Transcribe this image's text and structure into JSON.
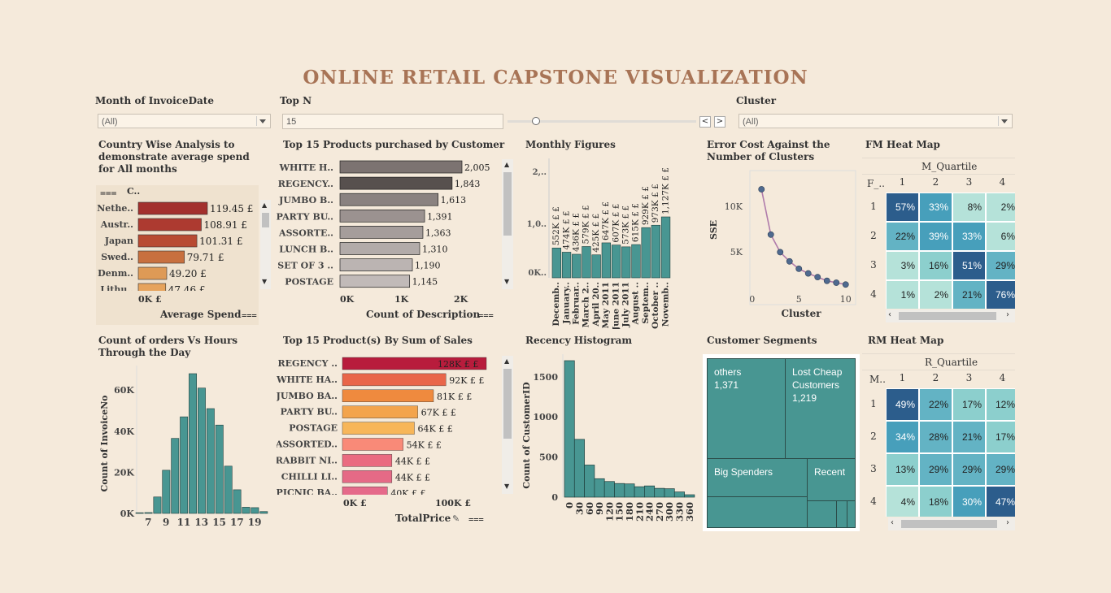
{
  "title": "ONLINE RETAIL CAPSTONE VISUALIZATION",
  "filters": {
    "month_label": "Month of InvoiceDate",
    "month_value": "(All)",
    "topn_label": "Top N",
    "topn_value": "15",
    "cluster_label": "Cluster",
    "cluster_value": "(All)",
    "nav_prev": "<",
    "nav_next": ">"
  },
  "country_panel": {
    "title": "Country Wise Analysis to demonstrate average spend for All  months",
    "col_header": "C..",
    "countries": [
      "Nethe..",
      "Austr..",
      "Japan",
      "Swed..",
      "Denm..",
      "Lithu.."
    ],
    "labels": [
      "119.45  £",
      "108.91  £",
      "101.31  £",
      "79.71  £",
      "49.20  £",
      "47.46  £"
    ],
    "tick": "0K £",
    "axis_title": "Average Spend",
    "chart_data": {
      "type": "bar",
      "categories": [
        "Nethe..",
        "Austr..",
        "Japan",
        "Swed..",
        "Denm..",
        "Lithu.."
      ],
      "values": [
        119.45,
        108.91,
        101.31,
        79.71,
        49.2,
        47.46
      ],
      "xlabel": "Average Spend",
      "colors": [
        "#a3302d",
        "#ad3a30",
        "#b84a32",
        "#c8703f",
        "#de9a56",
        "#e6a35c"
      ]
    }
  },
  "top15_desc": {
    "title": "Top 15 Products purchased by Customer",
    "products": [
      "WHITE H..",
      "REGENCY..",
      "JUMBO B..",
      "PARTY BU..",
      "ASSORTE..",
      "LUNCH B..",
      "SET OF 3 ..",
      "POSTAGE"
    ],
    "labels": [
      "2,005",
      "1,843",
      "1,613",
      "1,391",
      "1,363",
      "1,310",
      "1,190",
      "1,145"
    ],
    "ticks": [
      "0K",
      "1K",
      "2K"
    ],
    "axis_title": "Count of Description",
    "chart_data": {
      "type": "bar",
      "categories": [
        "WHITE H..",
        "REGENCY..",
        "JUMBO B..",
        "PARTY BU..",
        "ASSORTE..",
        "LUNCH B..",
        "SET OF 3 ..",
        "POSTAGE"
      ],
      "values": [
        2005,
        1843,
        1613,
        1391,
        1363,
        1310,
        1190,
        1145
      ],
      "xlabel": "Count of Description",
      "colors": [
        "#7c7371",
        "#57504e",
        "#8a8280",
        "#9b9290",
        "#a59d9b",
        "#b2aba9",
        "#bbb4b2",
        "#c1bab8"
      ]
    }
  },
  "monthly": {
    "title": "Monthly Figures",
    "ticks": [
      "2,..",
      "1,0..",
      "0K.."
    ],
    "months": [
      "Decemb..",
      "January..",
      "Februar..",
      "March 2..",
      "April 20..",
      "May 2011",
      "June 2011",
      "July 2011",
      "August ..",
      "Septem..",
      "October ..",
      "Novemb.."
    ],
    "labels": [
      "552K £  £",
      "474K £  £",
      "436K £  £",
      "579K £  £",
      "425K £  £",
      "647K £  £",
      "607K £  £",
      "573K £  £",
      "615K £  £",
      "929K £  £",
      "973K £  £",
      "1,127K £  £"
    ],
    "chart_data": {
      "type": "bar",
      "categories": [
        "Decemb..",
        "January..",
        "Februar..",
        "March 2..",
        "April 20..",
        "May 2011",
        "June 2011",
        "July 2011",
        "August ..",
        "Septem..",
        "October ..",
        "Novemb.."
      ],
      "values": [
        552,
        474,
        436,
        579,
        425,
        647,
        607,
        573,
        615,
        929,
        973,
        1127
      ],
      "color": "#489692"
    }
  },
  "elbow": {
    "title": "Error Cost Against the Number of Clusters",
    "ylabel": "SSE",
    "xlabel": "Cluster",
    "yticks": [
      "10K",
      "5K"
    ],
    "xticks": [
      "0",
      "5",
      "10"
    ],
    "chart_data": {
      "type": "line",
      "x": [
        1,
        2,
        3,
        4,
        5,
        6,
        7,
        8,
        9,
        10
      ],
      "y": [
        12300,
        7400,
        5500,
        4500,
        3700,
        3200,
        2800,
        2400,
        2200,
        2000
      ],
      "xlabel": "Cluster",
      "ylabel": "SSE",
      "line_color": "#b07cab",
      "marker_color": "#4f6a8f"
    }
  },
  "fm_heatmap": {
    "title": "FM Heat Map",
    "col_title": "M_Quartile",
    "row_header": "F_..",
    "cols": [
      "1",
      "2",
      "3",
      "4"
    ],
    "rows": [
      "1",
      "2",
      "3",
      "4"
    ],
    "values": [
      [
        "57%",
        "33%",
        "8%",
        "2%"
      ],
      [
        "22%",
        "39%",
        "33%",
        "6%"
      ],
      [
        "3%",
        "16%",
        "51%",
        "29%"
      ],
      [
        "1%",
        "2%",
        "21%",
        "76%"
      ]
    ],
    "chart_data": {
      "type": "heatmap",
      "x": [
        "1",
        "2",
        "3",
        "4"
      ],
      "y": [
        "1",
        "2",
        "3",
        "4"
      ],
      "values": [
        [
          57,
          33,
          8,
          2
        ],
        [
          22,
          39,
          33,
          6
        ],
        [
          3,
          16,
          51,
          29
        ],
        [
          1,
          2,
          21,
          76
        ]
      ]
    }
  },
  "orders_hours": {
    "title": "Count of orders Vs Hours Through the Day",
    "ylabel": "Count of InvoiceNo",
    "yticks": [
      "60K",
      "40K",
      "20K",
      "0K"
    ],
    "xticks": [
      "7",
      "9",
      "11",
      "13",
      "15",
      "17",
      "19"
    ],
    "chart_data": {
      "type": "bar",
      "x": [
        6,
        7,
        8,
        9,
        10,
        11,
        12,
        13,
        14,
        15,
        16,
        17,
        18,
        19,
        20
      ],
      "values": [
        41,
        400,
        8000,
        21000,
        36500,
        47000,
        68000,
        61000,
        51000,
        43000,
        23000,
        11500,
        3000,
        2800,
        900
      ],
      "ylabel": "Count of InvoiceNo",
      "color": "#489692"
    }
  },
  "top15_sales": {
    "title": "Top 15 Product(s) By Sum of Sales",
    "products": [
      "REGENCY ..",
      "WHITE HA..",
      "JUMBO BA..",
      "PARTY BU..",
      "POSTAGE",
      "ASSORTED..",
      "RABBIT NI..",
      "CHILLI LI..",
      "PICNIC BA.."
    ],
    "labels": [
      "128K £  £",
      "92K £  £",
      "81K £  £",
      "67K £  £",
      "64K £  £",
      "54K £  £",
      "44K £  £",
      "44K £  £",
      "40K £  £"
    ],
    "ticks": [
      "0K £",
      "100K £"
    ],
    "axis_title": "TotalPrice",
    "chart_data": {
      "type": "bar",
      "categories": [
        "REGENCY ..",
        "WHITE HA..",
        "JUMBO BA..",
        "PARTY BU..",
        "POSTAGE",
        "ASSORTED..",
        "RABBIT NI..",
        "CHILLI LI..",
        "PICNIC BA.."
      ],
      "values": [
        128,
        92,
        81,
        67,
        64,
        54,
        44,
        44,
        40
      ],
      "xlabel": "TotalPrice",
      "colors": [
        "#b81c3c",
        "#e9664a",
        "#ef8a3e",
        "#f3a44c",
        "#f7b659",
        "#f98a78",
        "#ea6b80",
        "#e56a86",
        "#e56a8a"
      ]
    }
  },
  "recency": {
    "title": "Recency Histogram",
    "ylabel": "Count of CustomerID",
    "yticks": [
      "1500",
      "1000",
      "500",
      "0"
    ],
    "xticks": [
      "0",
      "30",
      "60",
      "90",
      "120",
      "150",
      "180",
      "210",
      "240",
      "270",
      "300",
      "330",
      "360"
    ],
    "chart_data": {
      "type": "bar",
      "x": [
        0,
        30,
        60,
        90,
        120,
        150,
        180,
        210,
        240,
        270,
        300,
        330,
        360
      ],
      "values": [
        1700,
        720,
        400,
        230,
        195,
        170,
        165,
        130,
        140,
        110,
        105,
        65,
        30
      ],
      "ylabel": "Count of CustomerID",
      "color": "#489692"
    }
  },
  "segments": {
    "title": "Customer Segments",
    "others_label": "others",
    "others_value": "1,371",
    "lost_label": "Lost Cheap Customers",
    "lost_value": "1,219",
    "big_label": "Big Spenders",
    "recent_label": "Recent"
  },
  "rm_heatmap": {
    "title": "RM Heat Map",
    "col_title": "R_Quartile",
    "row_header": "M..",
    "cols": [
      "1",
      "2",
      "3",
      "4"
    ],
    "rows": [
      "1",
      "2",
      "3",
      "4"
    ],
    "values": [
      [
        "49%",
        "22%",
        "17%",
        "12%"
      ],
      [
        "34%",
        "28%",
        "21%",
        "17%"
      ],
      [
        "13%",
        "29%",
        "29%",
        "29%"
      ],
      [
        "4%",
        "18%",
        "30%",
        "47%"
      ]
    ],
    "chart_data": {
      "type": "heatmap",
      "x": [
        "1",
        "2",
        "3",
        "4"
      ],
      "y": [
        "1",
        "2",
        "3",
        "4"
      ],
      "values": [
        [
          49,
          22,
          17,
          12
        ],
        [
          34,
          28,
          21,
          17
        ],
        [
          13,
          29,
          29,
          29
        ],
        [
          4,
          18,
          30,
          47
        ]
      ]
    }
  }
}
